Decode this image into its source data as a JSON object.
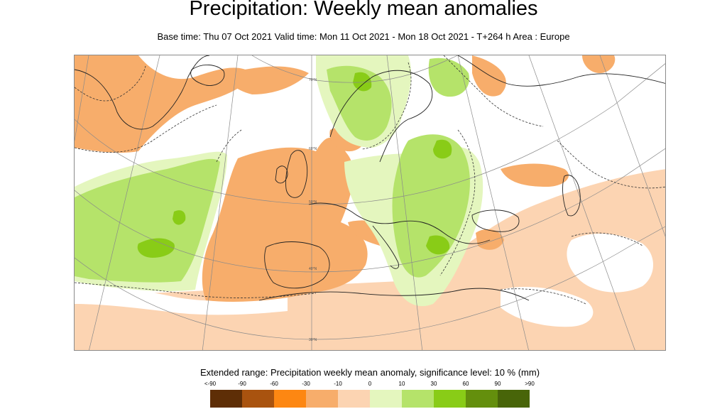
{
  "header": {
    "title": "Precipitation: Weekly mean anomalies",
    "subtitle": "Base time: Thu 07 Oct 2021 Valid time: Mon 11 Oct 2021 - Mon 18 Oct 2021 - T+264 h Area : Europe"
  },
  "map": {
    "graticule_labels": [
      "70°N",
      "60°N",
      "50°N",
      "40°N",
      "30°N"
    ]
  },
  "legend": {
    "title": "Extended range: Precipitation weekly mean anomaly, significance level: 10 % (mm)",
    "ticks": [
      "<-90",
      "-90",
      "-60",
      "-30",
      "-10",
      "0",
      "10",
      "30",
      "60",
      "90",
      ">90"
    ],
    "colors": [
      "#5e2e06",
      "#a9530f",
      "#fd8712",
      "#f7ad6b",
      "#fcd4b2",
      "#e4f6be",
      "#b5e36a",
      "#89cc17",
      "#648f0d",
      "#486509"
    ]
  },
  "palette": {
    "neutral": "#ffffff",
    "dry_light": "#fcd4b2",
    "dry_mid": "#f7ad6b",
    "wet_light": "#e4f6be",
    "wet_mid": "#b5e36a",
    "wet_strong": "#89cc17"
  }
}
